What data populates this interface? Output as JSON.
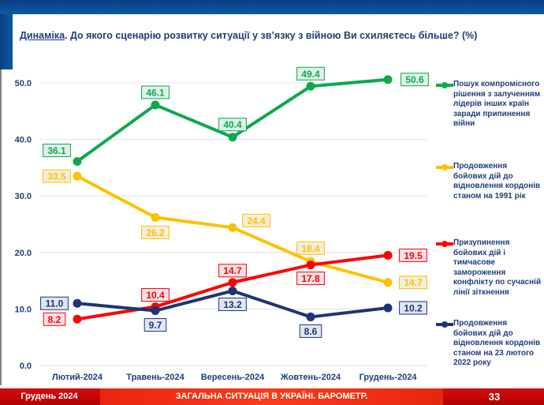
{
  "title": {
    "underlined": "Динаміка",
    "rest": ". До якого сценарію розвитку ситуації у зв’язку з війною Ви схиляєтесь більше? (%)"
  },
  "footer": {
    "left": "Грудень 2024",
    "center": "ЗАГАЛЬНА СИТУАЦІЯ В УКРАЇНІ. БАРОМЕТР.",
    "page": "33"
  },
  "chart_data": {
    "type": "line",
    "title": "Динаміка. До якого сценарію розвитку ситуації у зв’язку з війною Ви схиляєтесь більше? (%)",
    "xlabel": "",
    "ylabel": "",
    "ylim": [
      0,
      50
    ],
    "yticks": [
      "0.0",
      "10.0",
      "20.0",
      "30.0",
      "40.0",
      "50.0"
    ],
    "grid": true,
    "legend_position": "right",
    "categories": [
      "Лютий-2024",
      "Травень-2024",
      "Вересень-2024",
      "Жовтень-2024",
      "Грудень-2024"
    ],
    "series": [
      {
        "name": "Пошук компромісного рішення з залученням лідерів інших країн заради припинення війни",
        "color": "#0ea84f",
        "values": [
          36.1,
          46.1,
          40.4,
          49.4,
          50.6
        ],
        "labels": [
          "36.1",
          "46.1",
          "40.4",
          "49.4",
          "50.6"
        ]
      },
      {
        "name": "Продовження бойових дій до відновлення кордонів станом на 1991 рік",
        "color": "#ffc000",
        "values": [
          33.5,
          26.2,
          24.4,
          18.4,
          14.7
        ],
        "labels": [
          "33.5",
          "26.2",
          "24.4",
          "18.4",
          "14.7"
        ]
      },
      {
        "name": "Призупинення бойових дій і тимчасове замороження конфлікту по сучасній лінії зіткнення",
        "color": "#ff0000",
        "values": [
          8.2,
          10.4,
          14.7,
          17.8,
          19.5
        ],
        "labels": [
          "8.2",
          "10.4",
          "14.7",
          "17.8",
          "19.5"
        ]
      },
      {
        "name": "Продовження бойових дій до відновлення кордонів станом на 23 лютого 2022 року",
        "color": "#1f3474",
        "values": [
          11.0,
          9.7,
          13.2,
          8.6,
          10.2
        ],
        "labels": [
          "11.0",
          "9.7",
          "13.2",
          "8.6",
          "10.2"
        ]
      }
    ]
  }
}
